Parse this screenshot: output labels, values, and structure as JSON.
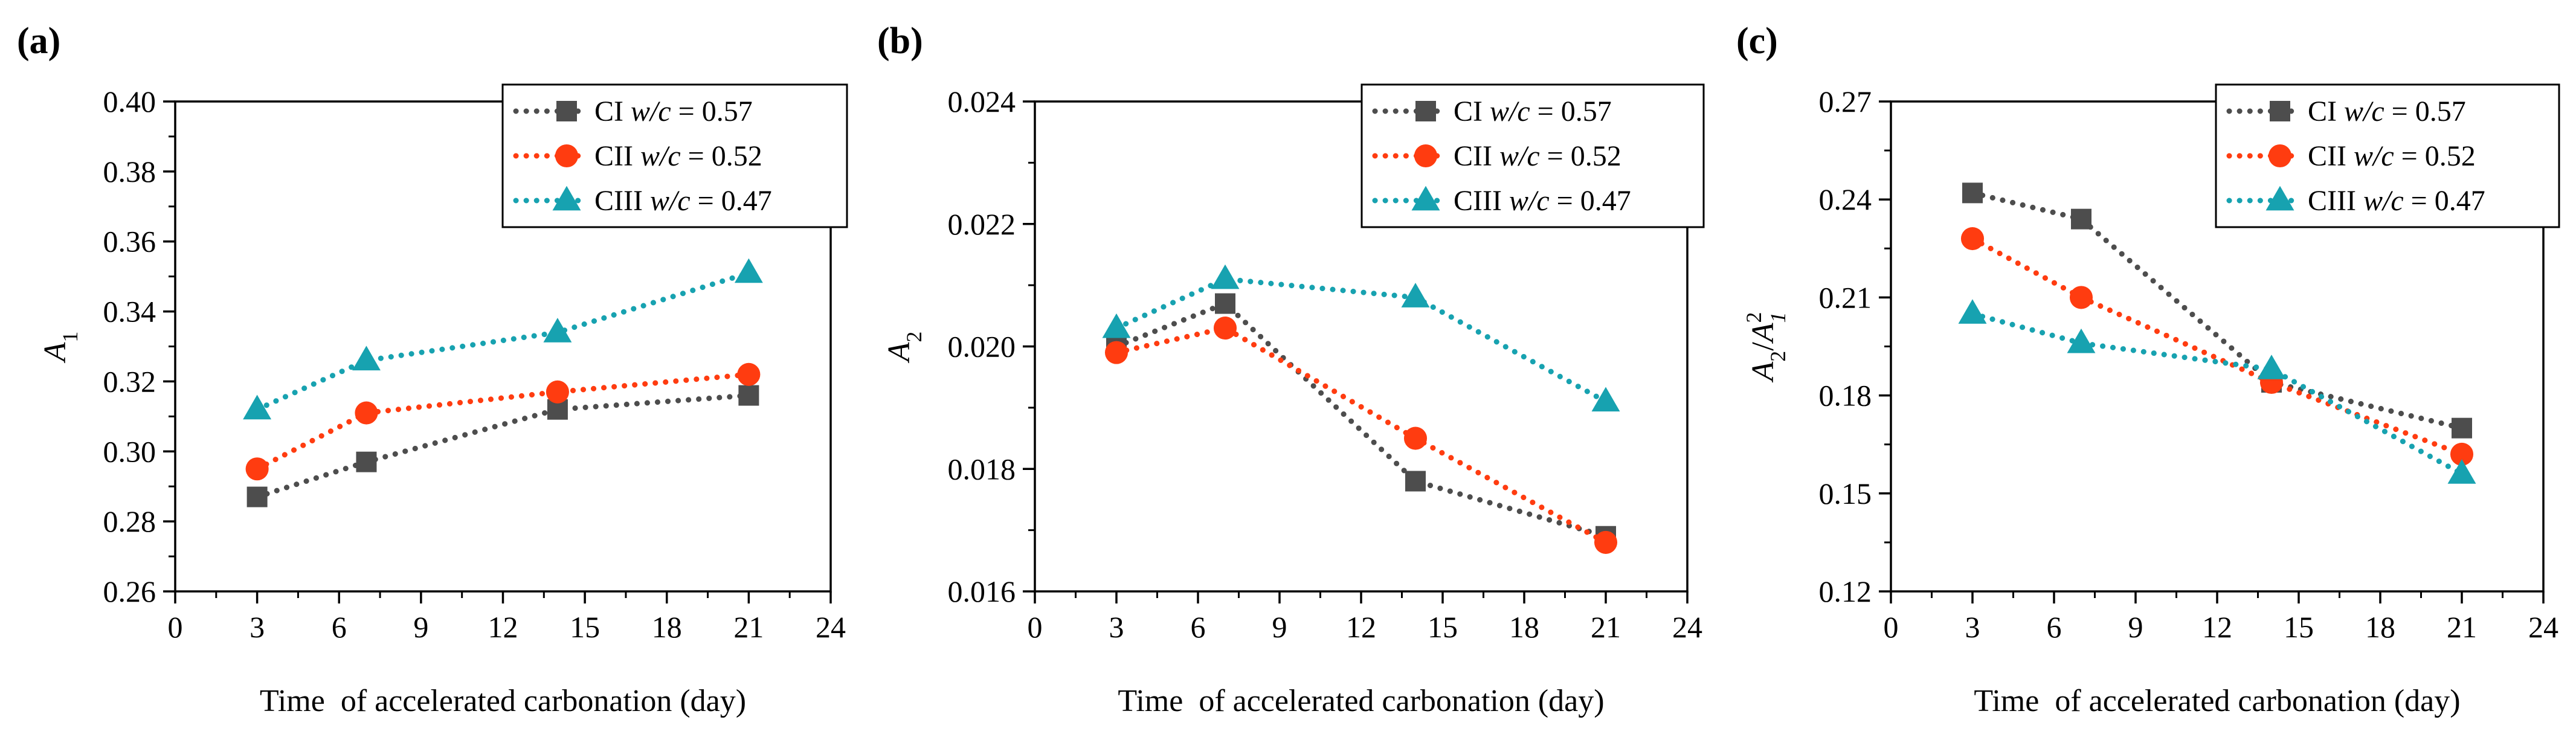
{
  "chart_data": [
    {
      "type": "line",
      "panel_label": "(a)",
      "ylabel": "A",
      "ylabel_sub": "1",
      "xlabel": "Time  of accelerated carbonation (day)",
      "xlim": [
        0,
        24
      ],
      "ylim": [
        0.26,
        0.4
      ],
      "xticks": [
        "0",
        "3",
        "6",
        "9",
        "12",
        "15",
        "18",
        "21",
        "24"
      ],
      "yticks": [
        "0.26",
        "0.28",
        "0.30",
        "0.32",
        "0.34",
        "0.36",
        "0.38",
        "0.40"
      ],
      "legend_position": "top-right",
      "x": [
        3,
        7,
        14,
        21
      ],
      "series": [
        {
          "name": "CI",
          "wc": "0.57",
          "color": "#4d4d4d",
          "marker": "square",
          "values": [
            0.287,
            0.297,
            0.312,
            0.316
          ]
        },
        {
          "name": "CII",
          "wc": "0.52",
          "color": "#ff3c10",
          "marker": "circle",
          "values": [
            0.295,
            0.311,
            0.317,
            0.322
          ]
        },
        {
          "name": "CIII",
          "wc": "0.47",
          "color": "#17a2b0",
          "marker": "triangle",
          "values": [
            0.312,
            0.326,
            0.334,
            0.351
          ]
        }
      ]
    },
    {
      "type": "line",
      "panel_label": "(b)",
      "ylabel": "A",
      "ylabel_sub": "2",
      "xlabel": "Time  of accelerated carbonation (day)",
      "xlim": [
        0,
        24
      ],
      "ylim": [
        0.016,
        0.024
      ],
      "xticks": [
        "0",
        "3",
        "6",
        "9",
        "12",
        "15",
        "18",
        "21",
        "24"
      ],
      "yticks": [
        "0.016",
        "0.018",
        "0.020",
        "0.022",
        "0.024"
      ],
      "legend_position": "top-right",
      "x": [
        3,
        7,
        14,
        21
      ],
      "series": [
        {
          "name": "CI",
          "wc": "0.57",
          "color": "#4d4d4d",
          "marker": "square",
          "values": [
            0.02,
            0.0207,
            0.0178,
            0.0169
          ]
        },
        {
          "name": "CII",
          "wc": "0.52",
          "color": "#ff3c10",
          "marker": "circle",
          "values": [
            0.0199,
            0.0203,
            0.0185,
            0.0168
          ]
        },
        {
          "name": "CIII",
          "wc": "0.47",
          "color": "#17a2b0",
          "marker": "triangle",
          "values": [
            0.0203,
            0.0211,
            0.0208,
            0.0191
          ]
        }
      ]
    },
    {
      "type": "line",
      "panel_label": "(c)",
      "ylabel": "A",
      "ylabel_sub": "2",
      "ylabel_sep": "/",
      "ylabel2": "A",
      "ylabel2_sub": "1",
      "ylabel2_sup": "2",
      "xlabel": "Time  of accelerated carbonation (day)",
      "xlim": [
        0,
        24
      ],
      "ylim": [
        0.12,
        0.27
      ],
      "xticks": [
        "0",
        "3",
        "6",
        "9",
        "12",
        "15",
        "18",
        "21",
        "24"
      ],
      "yticks": [
        "0.12",
        "0.15",
        "0.18",
        "0.21",
        "0.24",
        "0.27"
      ],
      "legend_position": "top-right",
      "x": [
        3,
        7,
        14,
        21
      ],
      "series": [
        {
          "name": "CI",
          "wc": "0.57",
          "color": "#4d4d4d",
          "marker": "square",
          "values": [
            0.242,
            0.234,
            0.184,
            0.17
          ]
        },
        {
          "name": "CII",
          "wc": "0.52",
          "color": "#ff3c10",
          "marker": "circle",
          "values": [
            0.228,
            0.21,
            0.184,
            0.162
          ]
        },
        {
          "name": "CIII",
          "wc": "0.47",
          "color": "#17a2b0",
          "marker": "triangle",
          "values": [
            0.205,
            0.196,
            0.188,
            0.156
          ]
        }
      ]
    }
  ],
  "legend_wc_label": "w/c",
  "legend_equals": " = "
}
